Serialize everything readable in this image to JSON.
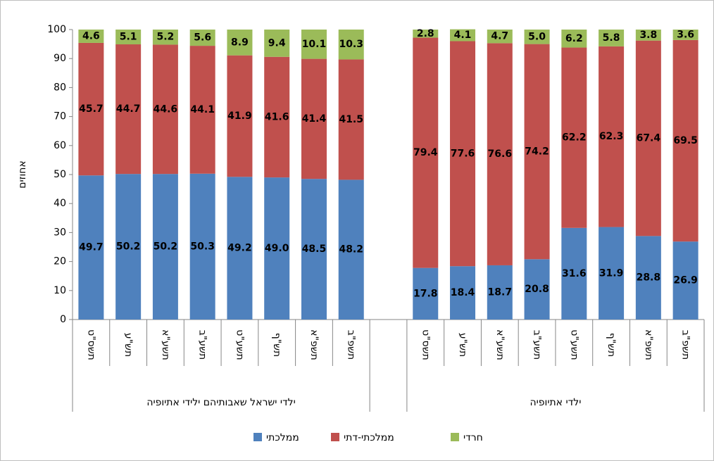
{
  "chart_data": {
    "type": "stacked_bar",
    "y_label": "אחוזים",
    "groups": [
      {
        "label": "ילדי ישראל שאבותיהם ילידי אתיופיה",
        "categories": [
          "תשס\"ט",
          "תש\"ע",
          "תשע\"א",
          "תשע\"ב",
          "תשע\"ט",
          "תש\"ף",
          "תשפ\"א",
          "תשפ\"ב"
        ]
      },
      {
        "label": "ילדי אתיופיה",
        "categories": [
          "תשס\"ט",
          "תש\"ע",
          "תשע\"א",
          "תשע\"ב",
          "תשע\"ט",
          "תש\"ף",
          "תשפ\"א",
          "תשפ\"ב"
        ]
      }
    ],
    "series": [
      {
        "name": "ממלכתי",
        "color": "#4f81bd",
        "values": [
          49.7,
          50.2,
          50.2,
          50.3,
          49.2,
          49.0,
          48.5,
          48.2,
          17.8,
          18.4,
          18.7,
          20.8,
          31.6,
          31.9,
          28.8,
          26.9
        ],
        "value_labels": [
          "49.7",
          "50.2",
          "50.2",
          "50.3",
          "49.2",
          "49.0",
          "48.5",
          "48.2",
          "17.8",
          "18.4",
          "18.7",
          "20.8",
          "31.6",
          "31.9",
          "28.8",
          "26.9"
        ]
      },
      {
        "name": "ממלכתי-דתי",
        "color": "#c0504d",
        "values": [
          45.7,
          44.7,
          44.6,
          44.1,
          41.9,
          41.6,
          41.4,
          41.5,
          79.4,
          77.6,
          76.6,
          74.2,
          62.2,
          62.3,
          67.4,
          69.5
        ],
        "value_labels": [
          "45.7",
          "44.7",
          "44.6",
          "44.1",
          "41.9",
          "41.6",
          "41.4",
          "41.5",
          "79.4",
          "77.6",
          "76.6",
          "74.2",
          "62.2",
          "62.3",
          "67.4",
          "69.5"
        ]
      },
      {
        "name": "חרדי",
        "color": "#9bbb59",
        "values": [
          4.6,
          5.1,
          5.2,
          5.6,
          8.9,
          9.4,
          10.1,
          10.3,
          2.8,
          4.1,
          4.7,
          5.0,
          6.2,
          5.8,
          3.8,
          3.6
        ],
        "value_labels": [
          "4.6",
          "5.1",
          "5.2",
          "5.6",
          "8.9",
          "9.4",
          "10.1",
          "10.3",
          "2.8",
          "4.1",
          "4.7",
          "5.0",
          "6.2",
          "5.8",
          "3.8",
          "3.6"
        ]
      }
    ],
    "ylim": [
      0,
      100
    ],
    "yticks": [
      0,
      10,
      20,
      30,
      40,
      50,
      60,
      70,
      80,
      90,
      100
    ],
    "grid": false,
    "legend": "bottom"
  }
}
